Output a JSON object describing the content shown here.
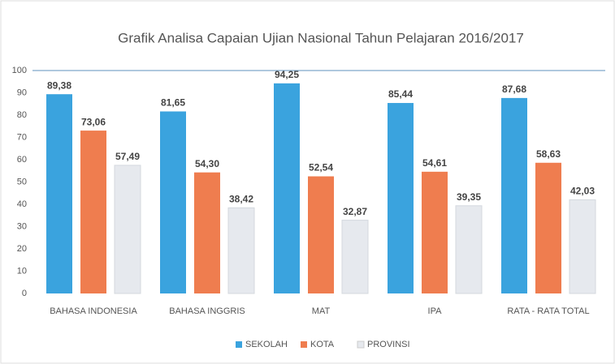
{
  "chart_data": {
    "type": "bar",
    "title": "Grafik Analisa Capaian Ujian Nasional Tahun Pelajaran 2016/2017",
    "categories": [
      "BAHASA INDONESIA",
      "BAHASA INGGRIS",
      "MAT",
      "IPA",
      "RATA - RATA TOTAL"
    ],
    "series": [
      {
        "name": "SEKOLAH",
        "color": "#3aa3de",
        "values": [
          89.38,
          81.65,
          94.25,
          85.44,
          87.68
        ],
        "value_labels": [
          "89,38",
          "81,65",
          "94,25",
          "85,44",
          "87,68"
        ]
      },
      {
        "name": "KOTA",
        "color": "#ef7d4f",
        "values": [
          73.06,
          54.3,
          52.54,
          54.61,
          58.63
        ],
        "value_labels": [
          "73,06",
          "54,30",
          "52,54",
          "54,61",
          "58,63"
        ]
      },
      {
        "name": "PROVINSI",
        "color": "#e6e9ee",
        "values": [
          57.49,
          38.42,
          32.87,
          39.35,
          42.03
        ],
        "value_labels": [
          "57,49",
          "38,42",
          "32,87",
          "39,35",
          "42,03"
        ]
      }
    ],
    "ylim": [
      0,
      100
    ],
    "yticks": [
      0,
      10,
      20,
      30,
      40,
      50,
      60,
      70,
      80,
      90,
      100
    ],
    "legend": "bottom"
  }
}
